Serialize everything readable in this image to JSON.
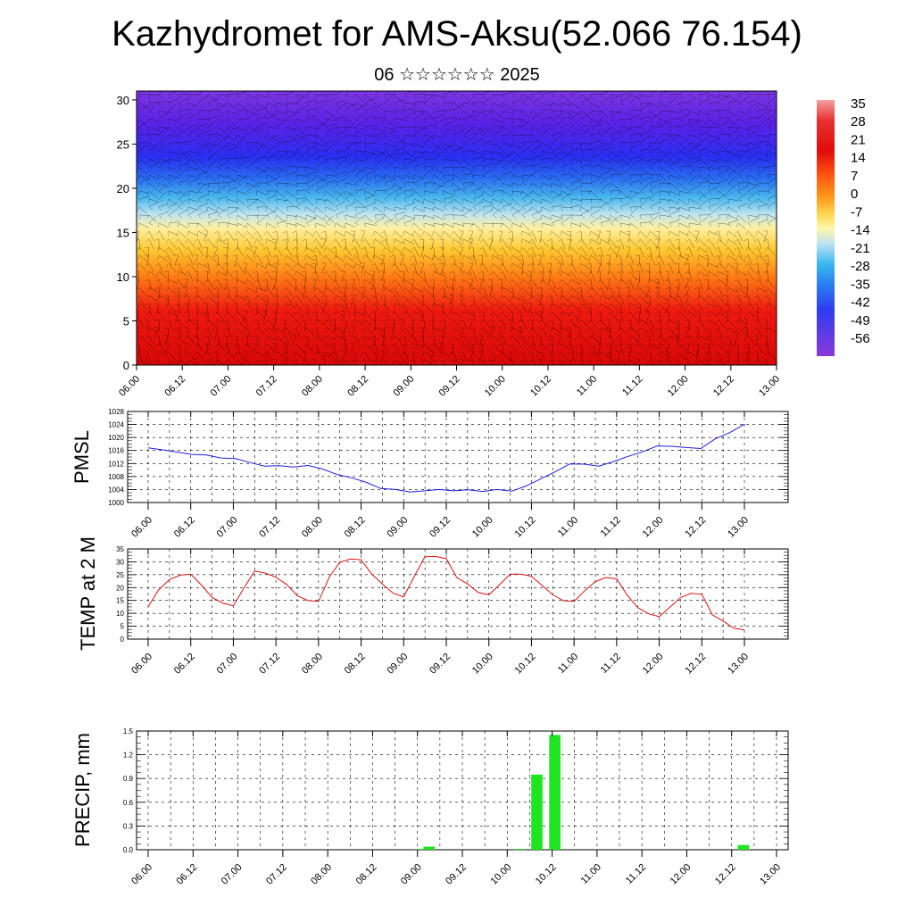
{
  "header": {
    "title": "Kazhydromet for AMS-Aksu(52.066 76.154)",
    "subtitle": "06 ☆☆☆☆☆☆ 2025"
  },
  "colors": {
    "pmsl_line": "#1f1fd6",
    "temp_line": "#d41414",
    "precip_bar": "#1ee61e",
    "colorbar": [
      "#7a2fd9",
      "#3d1cf0",
      "#2f5cf0",
      "#2a9ee8",
      "#5ec8f0",
      "#bfe4f0",
      "#fff6a8",
      "#ffd24a",
      "#ff9a1a",
      "#ff5a10",
      "#ee1010",
      "#d80808",
      "#e84040",
      "#f4a0a0"
    ]
  },
  "chart_data": [
    {
      "type": "heatmap",
      "name": "cross-section",
      "x_ticks": [
        "06.00",
        "06.12",
        "07.00",
        "07.12",
        "08.00",
        "08.12",
        "09.00",
        "09.12",
        "10.00",
        "10.12",
        "11.00",
        "11.12",
        "12.00",
        "12.12",
        "13.00"
      ],
      "y_ticks": [
        "0",
        "5",
        "10",
        "15",
        "20",
        "25",
        "30"
      ],
      "ylim": [
        0,
        31
      ],
      "colorbar_labels": [
        "35",
        "28",
        "21",
        "14",
        "7",
        "0",
        "-7",
        "-14",
        "-21",
        "-28",
        "-35",
        "-42",
        "-49",
        "-56"
      ]
    },
    {
      "type": "line",
      "name": "pmsl",
      "ylabel": "PMSL",
      "ylim": [
        1000,
        1028
      ],
      "y_ticks": [
        "1000",
        "1004",
        "1008",
        "1012",
        "1016",
        "1020",
        "1024",
        "1028"
      ],
      "x_ticks": [
        "06.00",
        "06.12",
        "07.00",
        "07.12",
        "08.00",
        "08.12",
        "09.00",
        "09.12",
        "10.00",
        "10.12",
        "11.00",
        "11.12",
        "12.00",
        "12.12",
        "13.00"
      ],
      "values": [
        1016.8,
        1016.2,
        1015.5,
        1014.8,
        1014.6,
        1013.7,
        1013.5,
        1012.3,
        1011.2,
        1011.3,
        1010.9,
        1011.4,
        1010.3,
        1008.6,
        1007.6,
        1006.2,
        1004.3,
        1004.0,
        1003.2,
        1003.6,
        1004.0,
        1003.6,
        1003.9,
        1003.4,
        1004.0,
        1003.5,
        1005.1,
        1007.3,
        1009.5,
        1011.9,
        1011.8,
        1011.2,
        1012.6,
        1014.2,
        1015.6,
        1017.4,
        1017.3,
        1016.9,
        1016.6,
        1019.6,
        1021.5,
        1024.1
      ]
    },
    {
      "type": "line",
      "name": "temp2m",
      "ylabel": "TEMP at 2 M",
      "ylim": [
        0,
        35
      ],
      "y_ticks": [
        "0",
        "5",
        "10",
        "15",
        "20",
        "25",
        "30",
        "35"
      ],
      "x_ticks": [
        "06.00",
        "06.12",
        "07.00",
        "07.12",
        "08.00",
        "08.12",
        "09.00",
        "09.12",
        "10.00",
        "10.12",
        "11.00",
        "11.12",
        "12.00",
        "12.12",
        "13.00"
      ],
      "values": [
        12.6,
        19.2,
        23.1,
        24.8,
        25.2,
        21.0,
        16.2,
        14.0,
        12.9,
        19.9,
        26.4,
        25.6,
        24.0,
        21.2,
        16.8,
        15.0,
        14.6,
        24.0,
        29.8,
        31.1,
        30.8,
        25.2,
        21.4,
        17.8,
        16.4,
        24.4,
        32.0,
        32.1,
        31.2,
        23.8,
        21.4,
        18.1,
        17.2,
        21.1,
        25.2,
        25.2,
        24.4,
        20.8,
        17.2,
        14.9,
        14.6,
        18.8,
        22.3,
        23.9,
        23.4,
        17.0,
        12.2,
        9.8,
        8.7,
        12.4,
        16.1,
        17.8,
        17.4,
        9.4,
        7.0,
        4.2,
        3.6
      ]
    },
    {
      "type": "bar",
      "name": "precip",
      "ylabel": "PRECIP, mm",
      "ylim": [
        0,
        1.5
      ],
      "y_ticks": [
        "0.0",
        "0.3",
        "0.6",
        "0.9",
        "1.2",
        "1.5"
      ],
      "x_ticks": [
        "06.00",
        "06.12",
        "07.00",
        "07.12",
        "08.00",
        "08.12",
        "09.00",
        "09.12",
        "10.00",
        "10.12",
        "11.00",
        "11.12",
        "12.00",
        "12.12",
        "13.00"
      ],
      "bars": [
        {
          "x": 9.03,
          "value": 0.01
        },
        {
          "x": 9.13,
          "value": 0.04
        },
        {
          "x": 10.13,
          "value": 0.01
        },
        {
          "x": 10.33,
          "value": 0.95
        },
        {
          "x": 10.53,
          "value": 1.45
        },
        {
          "x": 12.63,
          "value": 0.06
        }
      ]
    }
  ]
}
